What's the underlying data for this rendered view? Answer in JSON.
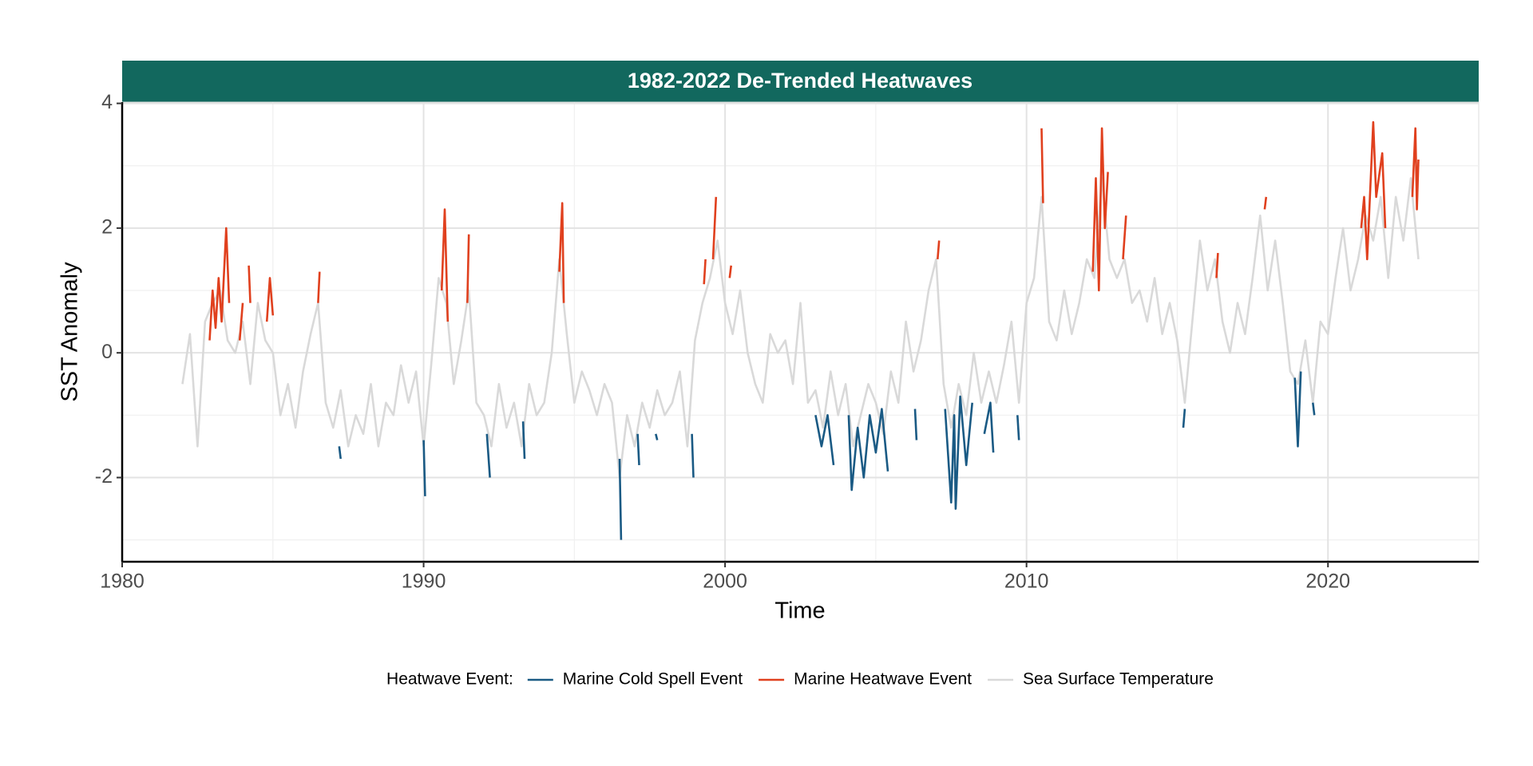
{
  "chart_data": {
    "type": "line",
    "title": "1982-2022 De-Trended Heatwaves",
    "x_label": "Time",
    "y_label": "SST Anomaly",
    "legend_title": "Heatwave Event:",
    "legend": "bottom",
    "grid": true,
    "strip_color": "#12685e",
    "xlim": [
      1980,
      2025
    ],
    "ylim": [
      -3.35,
      4.02
    ],
    "xticks": [
      1980,
      1990,
      2000,
      2010,
      2020
    ],
    "yticks": [
      -2,
      0,
      2,
      4
    ],
    "xminor": [
      1985,
      1995,
      2005,
      2015
    ],
    "yminor": [
      -3,
      -1,
      1,
      3
    ],
    "series": [
      {
        "name": "Marine Cold Spell Event",
        "color": "#1a5a84",
        "x": [
          1987.2,
          1987.25,
          null,
          1990.0,
          1990.05,
          null,
          1992.1,
          1992.2,
          null,
          1993.3,
          1993.35,
          null,
          1996.5,
          1996.55,
          null,
          1997.1,
          1997.15,
          null,
          1997.7,
          1997.75,
          null,
          1998.9,
          1998.95,
          null,
          2003.0,
          2003.2,
          2003.4,
          2003.6,
          null,
          2004.1,
          2004.2,
          2004.4,
          2004.6,
          2004.8,
          2005.0,
          2005.2,
          2005.4,
          null,
          2006.3,
          2006.35,
          null,
          2007.3,
          2007.5,
          2007.6,
          2007.65,
          2007.8,
          2008.0,
          2008.2,
          null,
          2008.6,
          2008.8,
          2008.9,
          null,
          2009.7,
          2009.75,
          null,
          2015.2,
          2015.25,
          null,
          2018.9,
          2019.0,
          2019.1,
          null,
          2019.5,
          2019.55
        ],
        "values": [
          -1.5,
          -1.7,
          null,
          -1.4,
          -2.3,
          null,
          -1.3,
          -2.0,
          null,
          -1.1,
          -1.7,
          null,
          -1.7,
          -3.0,
          null,
          -1.3,
          -1.8,
          null,
          -1.3,
          -1.4,
          null,
          -1.3,
          -2.0,
          null,
          -1.0,
          -1.5,
          -1.0,
          -1.8,
          null,
          -1.0,
          -2.2,
          -1.2,
          -2.0,
          -1.0,
          -1.6,
          -0.9,
          -1.9,
          null,
          -0.9,
          -1.4,
          null,
          -0.9,
          -2.4,
          -1.0,
          -2.5,
          -0.7,
          -1.8,
          -0.8,
          null,
          -1.3,
          -0.8,
          -1.6,
          null,
          -1.0,
          -1.4,
          null,
          -1.2,
          -0.9,
          null,
          -0.4,
          -1.5,
          -0.3,
          null,
          -0.8,
          -1.0
        ]
      },
      {
        "name": "Marine Heatwave Event",
        "color": "#e0401e",
        "x": [
          1982.9,
          1983.0,
          1983.1,
          1983.2,
          1983.3,
          1983.45,
          1983.55,
          null,
          1983.9,
          1984.0,
          null,
          1984.2,
          1984.25,
          null,
          1984.8,
          1984.9,
          1985.0,
          null,
          1986.5,
          1986.55,
          null,
          1990.6,
          1990.7,
          1990.8,
          null,
          1991.45,
          1991.5,
          null,
          1994.5,
          1994.6,
          1994.65,
          null,
          1999.3,
          1999.35,
          null,
          1999.6,
          1999.7,
          null,
          2000.15,
          2000.2,
          null,
          2007.05,
          2007.1,
          null,
          2010.5,
          2010.55,
          null,
          2012.2,
          2012.3,
          2012.4,
          2012.5,
          2012.6,
          2012.7,
          null,
          2013.2,
          2013.3,
          null,
          2016.3,
          2016.35,
          null,
          2017.9,
          2017.95,
          null,
          2021.1,
          2021.2,
          2021.3,
          2021.5,
          2021.6,
          2021.8,
          2021.9,
          null,
          2022.8,
          2022.9,
          2022.95,
          2023.0
        ],
        "values": [
          0.2,
          1.0,
          0.4,
          1.2,
          0.5,
          2.0,
          0.8,
          null,
          0.2,
          0.8,
          null,
          1.4,
          0.8,
          null,
          0.5,
          1.2,
          0.6,
          null,
          0.8,
          1.3,
          null,
          1.0,
          2.3,
          0.5,
          null,
          0.8,
          1.9,
          null,
          1.3,
          2.4,
          0.8,
          null,
          1.1,
          1.5,
          null,
          1.5,
          2.5,
          null,
          1.2,
          1.4,
          null,
          1.5,
          1.8,
          null,
          3.6,
          2.4,
          null,
          1.3,
          2.8,
          1.0,
          3.6,
          2.0,
          2.9,
          null,
          1.5,
          2.2,
          null,
          1.2,
          1.6,
          null,
          2.3,
          2.5,
          null,
          2.0,
          2.5,
          1.5,
          3.7,
          2.5,
          3.2,
          2.0,
          null,
          2.5,
          3.6,
          2.3,
          3.1
        ]
      },
      {
        "name": "Sea Surface Temperature",
        "color": "#d9d9d9",
        "x": [
          1982.0,
          1982.25,
          1982.5,
          1982.75,
          1983.0,
          1983.25,
          1983.5,
          1983.75,
          1984.0,
          1984.25,
          1984.5,
          1984.75,
          1985.0,
          1985.25,
          1985.5,
          1985.75,
          1986.0,
          1986.25,
          1986.5,
          1986.75,
          1987.0,
          1987.25,
          1987.5,
          1987.75,
          1988.0,
          1988.25,
          1988.5,
          1988.75,
          1989.0,
          1989.25,
          1989.5,
          1989.75,
          1990.0,
          1990.25,
          1990.5,
          1990.75,
          1991.0,
          1991.25,
          1991.5,
          1991.75,
          1992.0,
          1992.25,
          1992.5,
          1992.75,
          1993.0,
          1993.25,
          1993.5,
          1993.75,
          1994.0,
          1994.25,
          1994.5,
          1994.75,
          1995.0,
          1995.25,
          1995.5,
          1995.75,
          1996.0,
          1996.25,
          1996.5,
          1996.75,
          1997.0,
          1997.25,
          1997.5,
          1997.75,
          1998.0,
          1998.25,
          1998.5,
          1998.75,
          1999.0,
          1999.25,
          1999.5,
          1999.75,
          2000.0,
          2000.25,
          2000.5,
          2000.75,
          2001.0,
          2001.25,
          2001.5,
          2001.75,
          2002.0,
          2002.25,
          2002.5,
          2002.75,
          2003.0,
          2003.25,
          2003.5,
          2003.75,
          2004.0,
          2004.25,
          2004.5,
          2004.75,
          2005.0,
          2005.25,
          2005.5,
          2005.75,
          2006.0,
          2006.25,
          2006.5,
          2006.75,
          2007.0,
          2007.25,
          2007.5,
          2007.75,
          2008.0,
          2008.25,
          2008.5,
          2008.75,
          2009.0,
          2009.25,
          2009.5,
          2009.75,
          2010.0,
          2010.25,
          2010.5,
          2010.75,
          2011.0,
          2011.25,
          2011.5,
          2011.75,
          2012.0,
          2012.25,
          2012.5,
          2012.75,
          2013.0,
          2013.25,
          2013.5,
          2013.75,
          2014.0,
          2014.25,
          2014.5,
          2014.75,
          2015.0,
          2015.25,
          2015.5,
          2015.75,
          2016.0,
          2016.25,
          2016.5,
          2016.75,
          2017.0,
          2017.25,
          2017.5,
          2017.75,
          2018.0,
          2018.25,
          2018.5,
          2018.75,
          2019.0,
          2019.25,
          2019.5,
          2019.75,
          2020.0,
          2020.25,
          2020.5,
          2020.75,
          2021.0,
          2021.25,
          2021.5,
          2021.75,
          2022.0,
          2022.25,
          2022.5,
          2022.75,
          2023.0
        ],
        "values": [
          -0.5,
          0.3,
          -1.5,
          0.5,
          0.8,
          1.0,
          0.2,
          0.0,
          0.5,
          -0.5,
          0.8,
          0.2,
          0.0,
          -1.0,
          -0.5,
          -1.2,
          -0.3,
          0.3,
          0.8,
          -0.8,
          -1.2,
          -0.6,
          -1.5,
          -1.0,
          -1.3,
          -0.5,
          -1.5,
          -0.8,
          -1.0,
          -0.2,
          -0.8,
          -0.3,
          -1.5,
          -0.2,
          1.2,
          0.8,
          -0.5,
          0.2,
          1.0,
          -0.8,
          -1.0,
          -1.5,
          -0.5,
          -1.2,
          -0.8,
          -1.5,
          -0.5,
          -1.0,
          -0.8,
          0.0,
          1.5,
          0.3,
          -0.8,
          -0.3,
          -0.6,
          -1.0,
          -0.5,
          -0.8,
          -2.0,
          -1.0,
          -1.5,
          -0.8,
          -1.2,
          -0.6,
          -1.0,
          -0.8,
          -0.3,
          -1.5,
          0.2,
          0.8,
          1.2,
          1.8,
          0.8,
          0.3,
          1.0,
          0.0,
          -0.5,
          -0.8,
          0.3,
          0.0,
          0.2,
          -0.5,
          0.8,
          -0.8,
          -0.6,
          -1.2,
          -0.3,
          -1.0,
          -0.5,
          -1.5,
          -1.0,
          -0.5,
          -0.8,
          -1.3,
          -0.3,
          -0.8,
          0.5,
          -0.3,
          0.2,
          1.0,
          1.5,
          -0.5,
          -1.2,
          -0.5,
          -1.0,
          0.0,
          -0.8,
          -0.3,
          -0.8,
          -0.2,
          0.5,
          -0.8,
          0.8,
          1.2,
          2.5,
          0.5,
          0.2,
          1.0,
          0.3,
          0.8,
          1.5,
          1.2,
          2.8,
          1.5,
          1.2,
          1.5,
          0.8,
          1.0,
          0.5,
          1.2,
          0.3,
          0.8,
          0.2,
          -0.8,
          0.5,
          1.8,
          1.0,
          1.5,
          0.5,
          0.0,
          0.8,
          0.3,
          1.2,
          2.2,
          1.0,
          1.8,
          0.8,
          -0.3,
          -0.5,
          0.2,
          -0.8,
          0.5,
          0.3,
          1.2,
          2.0,
          1.0,
          1.5,
          2.2,
          1.8,
          2.5,
          1.2,
          2.5,
          1.8,
          2.8,
          1.5
        ]
      }
    ]
  }
}
